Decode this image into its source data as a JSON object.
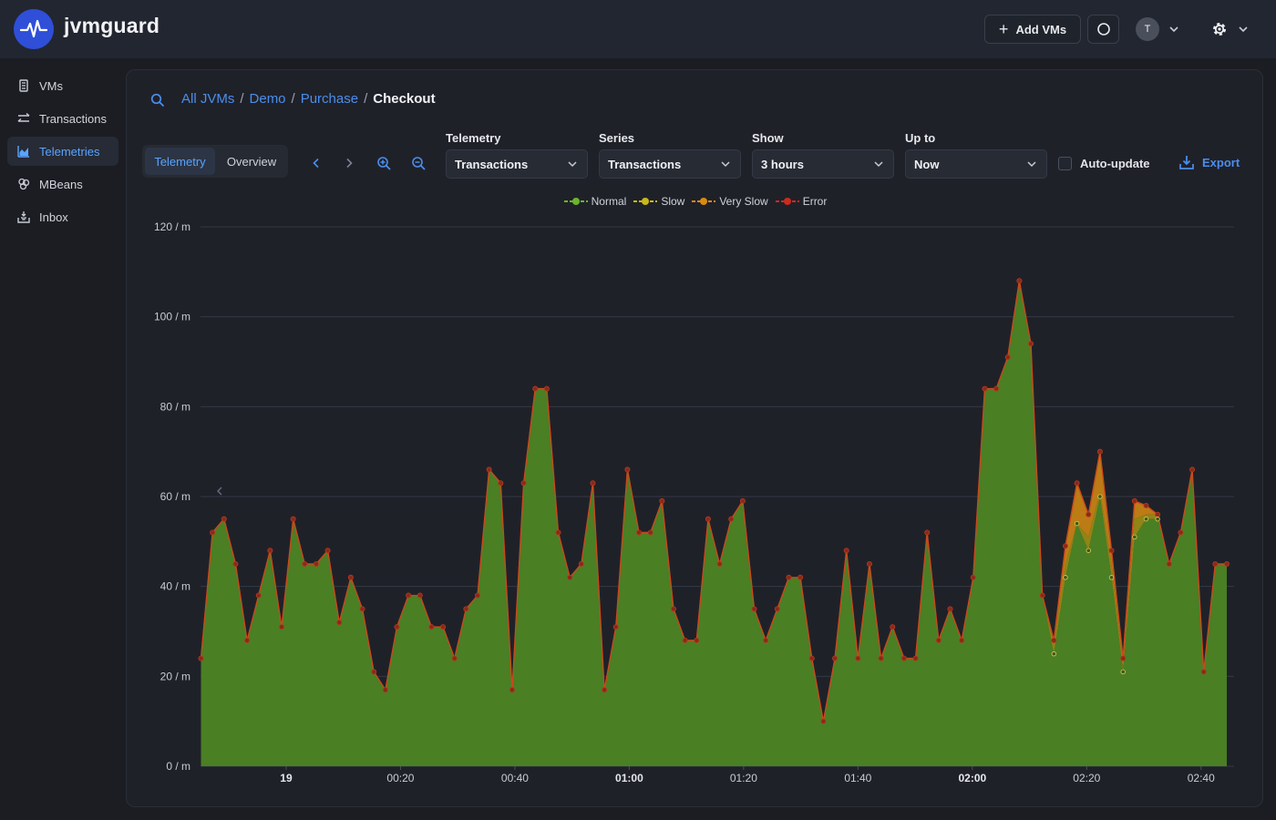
{
  "app": {
    "name": "jvmguard"
  },
  "header": {
    "add_vms_label": "Add VMs",
    "avatar_initial": "T"
  },
  "sidebar": {
    "items": [
      {
        "label": "VMs",
        "icon": "server-icon",
        "active": false
      },
      {
        "label": "Transactions",
        "icon": "transactions-icon",
        "active": false
      },
      {
        "label": "Telemetries",
        "icon": "chart-icon",
        "active": true
      },
      {
        "label": "MBeans",
        "icon": "mbeans-icon",
        "active": false
      },
      {
        "label": "Inbox",
        "icon": "inbox-icon",
        "active": false
      }
    ]
  },
  "breadcrumb": {
    "items": [
      "All JVMs",
      "Demo",
      "Purchase"
    ],
    "current": "Checkout"
  },
  "toolbar": {
    "tabs": [
      "Telemetry",
      "Overview"
    ],
    "active_tab": "Telemetry",
    "telemetry": {
      "label": "Telemetry",
      "value": "Transactions"
    },
    "series": {
      "label": "Series",
      "value": "Transactions"
    },
    "show": {
      "label": "Show",
      "value": "3 hours"
    },
    "up_to": {
      "label": "Up to",
      "value": "Now"
    },
    "auto_update_label": "Auto-update",
    "auto_update_checked": false,
    "export_label": "Export"
  },
  "colors": {
    "accent": "#4b8eea",
    "normal": "#4a7f24",
    "normal_marker": "#6bb52a",
    "slow": "#c8b81a",
    "very_slow": "#d88b12",
    "error": "#cc2a1e"
  },
  "chart_data": {
    "type": "area",
    "stacked": true,
    "legend": [
      "Normal",
      "Slow",
      "Very Slow",
      "Error"
    ],
    "legend_position": "top-center",
    "y_unit": "/ m",
    "ylim": [
      0,
      120
    ],
    "yticks": [
      0,
      20,
      40,
      60,
      80,
      100,
      120
    ],
    "grid": true,
    "x_ticks": [
      {
        "label": "19",
        "t": 10,
        "bold": true
      },
      {
        "label": "00:20",
        "t": 30,
        "bold": false
      },
      {
        "label": "00:40",
        "t": 50,
        "bold": false
      },
      {
        "label": "01:00",
        "t": 70,
        "bold": true
      },
      {
        "label": "01:20",
        "t": 90,
        "bold": false
      },
      {
        "label": "01:40",
        "t": 110,
        "bold": false
      },
      {
        "label": "02:00",
        "t": 130,
        "bold": true
      },
      {
        "label": "02:20",
        "t": 150,
        "bold": false
      },
      {
        "label": "02:40",
        "t": 170,
        "bold": false
      }
    ],
    "t_start": -5,
    "t_end": 175,
    "series": [
      {
        "name": "Normal",
        "values": [
          24,
          52,
          55,
          45,
          28,
          38,
          48,
          31,
          55,
          45,
          45,
          48,
          32,
          42,
          35,
          21,
          17,
          31,
          38,
          38,
          31,
          31,
          24,
          35,
          38,
          66,
          63,
          17,
          63,
          84,
          84,
          52,
          42,
          45,
          63,
          17,
          31,
          66,
          52,
          52,
          59,
          35,
          28,
          28,
          55,
          45,
          55,
          59,
          35,
          28,
          35,
          42,
          42,
          24,
          10,
          24,
          48,
          24,
          45,
          24,
          31,
          24,
          24,
          52,
          28,
          35,
          28,
          42,
          84,
          84,
          91,
          108,
          94,
          38,
          25,
          42,
          54,
          48,
          60,
          42,
          21,
          51,
          55,
          55,
          45,
          52,
          66,
          21,
          45,
          45
        ]
      },
      {
        "name": "Slow",
        "values": [
          0,
          0,
          0,
          0,
          0,
          0,
          0,
          0,
          0,
          0,
          0,
          0,
          0,
          0,
          0,
          0,
          0,
          0,
          0,
          0,
          0,
          0,
          0,
          0,
          0,
          0,
          0,
          0,
          0,
          0,
          0,
          0,
          0,
          0,
          0,
          0,
          0,
          0,
          0,
          0,
          0,
          0,
          0,
          0,
          0,
          0,
          0,
          0,
          0,
          0,
          0,
          0,
          0,
          0,
          0,
          0,
          0,
          0,
          0,
          0,
          0,
          0,
          0,
          0,
          0,
          0,
          0,
          0,
          0,
          0,
          0,
          0,
          0,
          0,
          2,
          3,
          0,
          3,
          1,
          3,
          1,
          4,
          1,
          1,
          0,
          0,
          0,
          0,
          0,
          0
        ]
      },
      {
        "name": "Very Slow",
        "values": [
          0,
          0,
          0,
          0,
          0,
          0,
          0,
          0,
          0,
          0,
          0,
          0,
          0,
          0,
          0,
          0,
          0,
          0,
          0,
          0,
          0,
          0,
          0,
          0,
          0,
          0,
          0,
          0,
          0,
          0,
          0,
          0,
          0,
          0,
          0,
          0,
          0,
          0,
          0,
          0,
          0,
          0,
          0,
          0,
          0,
          0,
          0,
          0,
          0,
          0,
          0,
          0,
          0,
          0,
          0,
          0,
          0,
          0,
          0,
          0,
          0,
          0,
          0,
          0,
          0,
          0,
          0,
          0,
          0,
          0,
          0,
          0,
          0,
          0,
          1,
          4,
          9,
          5,
          9,
          3,
          2,
          4,
          2,
          0,
          0,
          0,
          0,
          0,
          0,
          0
        ]
      },
      {
        "name": "Error",
        "values": [
          0,
          0,
          0,
          0,
          0,
          0,
          0,
          0,
          0,
          0,
          0,
          0,
          0,
          0,
          0,
          0,
          0,
          0,
          0,
          0,
          0,
          0,
          0,
          0,
          0,
          0,
          0,
          0,
          0,
          0,
          0,
          0,
          0,
          0,
          0,
          0,
          0,
          0,
          0,
          0,
          0,
          0,
          0,
          0,
          0,
          0,
          0,
          0,
          0,
          0,
          0,
          0,
          0,
          0,
          0,
          0,
          0,
          0,
          0,
          0,
          0,
          0,
          0,
          0,
          0,
          0,
          0,
          0,
          0,
          0,
          0,
          0,
          0,
          0,
          0,
          0,
          0,
          0,
          0,
          0,
          0,
          0,
          0,
          0,
          0,
          0,
          0,
          0,
          0,
          0
        ]
      }
    ]
  }
}
